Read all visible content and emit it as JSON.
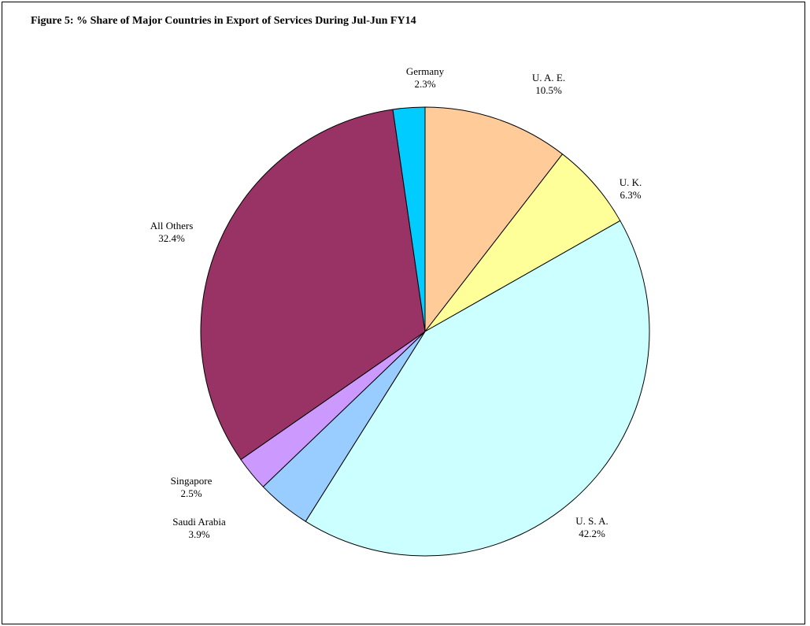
{
  "chart_data": {
    "type": "pie",
    "title": "Figure 5: % Share of Major Countries in Export of Services During Jul-Jun FY14",
    "slices": [
      {
        "label": "U. A. E.",
        "value_text": "10.5%",
        "value": 10.5,
        "color": "#FFCC99"
      },
      {
        "label": "U. K.",
        "value_text": "6.3%",
        "value": 6.3,
        "color": "#FFFF99"
      },
      {
        "label": "U. S. A.",
        "value_text": "42.2%",
        "value": 42.2,
        "color": "#CCFFFF"
      },
      {
        "label": "Saudi Arabia",
        "value_text": "3.9%",
        "value": 3.9,
        "color": "#99CCFF"
      },
      {
        "label": "Singapore",
        "value_text": "2.5%",
        "value": 2.5,
        "color": "#CC99FF"
      },
      {
        "label": "All Others",
        "value_text": "32.4%",
        "value": 32.4,
        "color": "#993366"
      },
      {
        "label": "Germany",
        "value_text": "2.3%",
        "value": 2.3,
        "color": "#00CCFF"
      }
    ]
  }
}
